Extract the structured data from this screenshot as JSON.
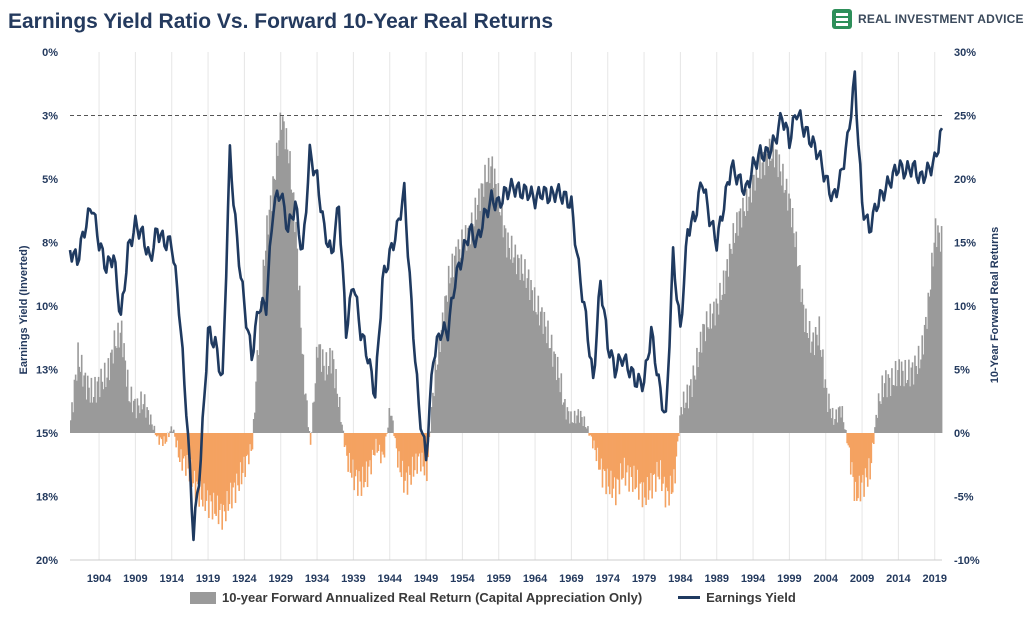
{
  "title": "Earnings Yield Ratio Vs. Forward 10-Year Real Returns",
  "brand": {
    "name": "REAL INVESTMENT ADVICE",
    "logo_icon": "bar-chart-icon",
    "color": "#2e8f5a"
  },
  "chart_data": {
    "type": "area+line",
    "title": "Earnings Yield Ratio Vs. Forward 10-Year Real Returns",
    "left_axis": {
      "label": "Earnings Yield (Inverted)",
      "inverted": true,
      "range": [
        0,
        20
      ],
      "ticks": [
        "0%",
        "3%",
        "5%",
        "8%",
        "10%",
        "13%",
        "15%",
        "18%",
        "20%"
      ]
    },
    "right_axis": {
      "label": "10-Year Forward Real Returns",
      "range": [
        -10,
        30
      ],
      "ticks": [
        "30%",
        "25%",
        "20%",
        "15%",
        "10%",
        "5%",
        "0%",
        "-5%",
        "-10%"
      ]
    },
    "x_axis": {
      "range": [
        1900,
        2020
      ],
      "ticks": [
        "1904",
        "1909",
        "1914",
        "1919",
        "1924",
        "1929",
        "1934",
        "1939",
        "1944",
        "1949",
        "1954",
        "1959",
        "1964",
        "1969",
        "1974",
        "1979",
        "1984",
        "1989",
        "1994",
        "1999",
        "2004",
        "2009",
        "2014",
        "2019"
      ]
    },
    "reference_line": {
      "axis": "left",
      "value": 2.5,
      "style": "dashed"
    },
    "grid": "vertical",
    "legend_position": "bottom",
    "colors": {
      "positive": "#9a9a9a",
      "negative": "#f4a261",
      "line": "#1f3a60"
    },
    "series": [
      {
        "name": "10-year Forward Annualized Real Return (Capital Appreciation Only)",
        "kind": "area",
        "axis": "right",
        "x": [
          1900,
          1901,
          1902,
          1903,
          1904,
          1905,
          1906,
          1907,
          1908,
          1909,
          1910,
          1911,
          1912,
          1913,
          1914,
          1915,
          1916,
          1917,
          1918,
          1919,
          1920,
          1921,
          1922,
          1923,
          1924,
          1925,
          1926,
          1927,
          1928,
          1929,
          1930,
          1931,
          1932,
          1933,
          1934,
          1935,
          1936,
          1937,
          1938,
          1939,
          1940,
          1941,
          1942,
          1943,
          1944,
          1945,
          1946,
          1947,
          1948,
          1949,
          1950,
          1951,
          1952,
          1953,
          1954,
          1955,
          1956,
          1957,
          1958,
          1959,
          1960,
          1961,
          1962,
          1963,
          1964,
          1965,
          1966,
          1967,
          1968,
          1969,
          1970,
          1971,
          1972,
          1973,
          1974,
          1975,
          1976,
          1977,
          1978,
          1979,
          1980,
          1981,
          1982,
          1983,
          1984,
          1985,
          1986,
          1987,
          1988,
          1989,
          1990,
          1991,
          1992,
          1993,
          1994,
          1995,
          1996,
          1997,
          1998,
          1999,
          2000,
          2001,
          2002,
          2003,
          2004,
          2005,
          2006,
          2007,
          2008,
          2009,
          2010,
          2011,
          2012,
          2013,
          2014,
          2015,
          2016,
          2017,
          2018,
          2019,
          2020
        ],
        "values": [
          1.0,
          6.0,
          4.0,
          3.0,
          4.0,
          4.5,
          7.0,
          8.0,
          3.0,
          2.0,
          2.5,
          1.0,
          -0.5,
          -0.7,
          0.5,
          -2.0,
          -2.5,
          -4.0,
          -5.0,
          -5.5,
          -6.0,
          -6.5,
          -5.0,
          -4.0,
          -2.5,
          -1.0,
          9.0,
          16.0,
          20.0,
          25.0,
          22.0,
          16.0,
          5.0,
          -1.0,
          7.0,
          5.0,
          6.0,
          2.0,
          -2.0,
          -3.5,
          -4.0,
          -3.0,
          -1.0,
          -2.0,
          2.0,
          -2.0,
          -4.0,
          -3.0,
          -2.0,
          -3.0,
          4.0,
          8.0,
          12.0,
          14.0,
          15.0,
          16.0,
          18.0,
          20.0,
          21.0,
          18.0,
          15.0,
          14.0,
          13.0,
          12.0,
          10.0,
          9.0,
          7.0,
          5.0,
          2.0,
          1.0,
          1.5,
          0.5,
          -1.0,
          -3.0,
          -4.0,
          -4.5,
          -3.0,
          -3.5,
          -4.0,
          -5.0,
          -4.0,
          -3.0,
          -5.0,
          -4.0,
          2.0,
          3.0,
          5.0,
          8.0,
          9.0,
          10.0,
          12.0,
          15.0,
          17.0,
          18.0,
          20.0,
          21.0,
          22.0,
          22.0,
          20.0,
          18.0,
          14.0,
          9.0,
          7.0,
          8.0,
          3.0,
          1.0,
          2.0,
          -1.0,
          -5.0,
          -4.0,
          -3.0,
          2.0,
          4.0,
          4.0,
          5.0,
          4.5,
          5.0,
          6.0,
          10.0,
          16.0,
          15.0
        ]
      },
      {
        "name": "Earnings Yield",
        "kind": "line",
        "axis": "left",
        "x": [
          1900,
          1901,
          1902,
          1903,
          1904,
          1905,
          1906,
          1907,
          1908,
          1909,
          1910,
          1911,
          1912,
          1913,
          1914,
          1915,
          1916,
          1917,
          1918,
          1919,
          1920,
          1921,
          1922,
          1923,
          1924,
          1925,
          1926,
          1927,
          1928,
          1929,
          1930,
          1931,
          1932,
          1933,
          1934,
          1935,
          1936,
          1937,
          1938,
          1939,
          1940,
          1941,
          1942,
          1943,
          1944,
          1945,
          1946,
          1947,
          1948,
          1949,
          1950,
          1951,
          1952,
          1953,
          1954,
          1955,
          1956,
          1957,
          1958,
          1959,
          1960,
          1961,
          1962,
          1963,
          1964,
          1965,
          1966,
          1967,
          1968,
          1969,
          1970,
          1971,
          1972,
          1973,
          1974,
          1975,
          1976,
          1977,
          1978,
          1979,
          1980,
          1981,
          1982,
          1983,
          1984,
          1985,
          1986,
          1987,
          1988,
          1989,
          1990,
          1991,
          1992,
          1993,
          1994,
          1995,
          1996,
          1997,
          1998,
          1999,
          2000,
          2001,
          2002,
          2003,
          2004,
          2005,
          2006,
          2007,
          2008,
          2009,
          2010,
          2011,
          2012,
          2013,
          2014,
          2015,
          2016,
          2017,
          2018,
          2019,
          2020
        ],
        "values": [
          7.8,
          8.2,
          7.0,
          6.0,
          7.5,
          8.5,
          8.0,
          10.5,
          7.8,
          6.8,
          7.2,
          8.2,
          7.0,
          7.5,
          7.5,
          10.0,
          14.0,
          19.0,
          16.0,
          11.0,
          11.5,
          13.0,
          4.0,
          7.5,
          10.0,
          12.0,
          10.0,
          10.0,
          6.0,
          5.5,
          7.0,
          6.0,
          8.0,
          4.0,
          5.0,
          7.0,
          8.0,
          6.0,
          11.0,
          9.0,
          11.0,
          12.0,
          13.5,
          9.0,
          8.0,
          7.0,
          5.5,
          10.0,
          14.0,
          16.0,
          12.0,
          11.0,
          11.0,
          9.0,
          8.0,
          7.0,
          7.5,
          6.5,
          5.8,
          6.0,
          5.5,
          5.3,
          5.5,
          5.5,
          5.8,
          5.5,
          5.7,
          5.5,
          5.7,
          6.0,
          8.5,
          10.5,
          13.0,
          9.0,
          11.5,
          12.5,
          12.0,
          12.5,
          13.0,
          13.0,
          11.0,
          13.0,
          14.5,
          8.0,
          11.0,
          7.0,
          6.5,
          5.0,
          6.5,
          7.5,
          6.0,
          4.5,
          5.0,
          5.5,
          4.5,
          4.0,
          4.0,
          3.5,
          2.5,
          3.5,
          2.3,
          3.0,
          3.5,
          4.0,
          5.0,
          5.8,
          5.0,
          3.5,
          1.0,
          6.0,
          7.0,
          6.0,
          5.5,
          5.0,
          4.5,
          4.7,
          4.5,
          5.0,
          4.7,
          4.3,
          3.0
        ]
      }
    ]
  }
}
